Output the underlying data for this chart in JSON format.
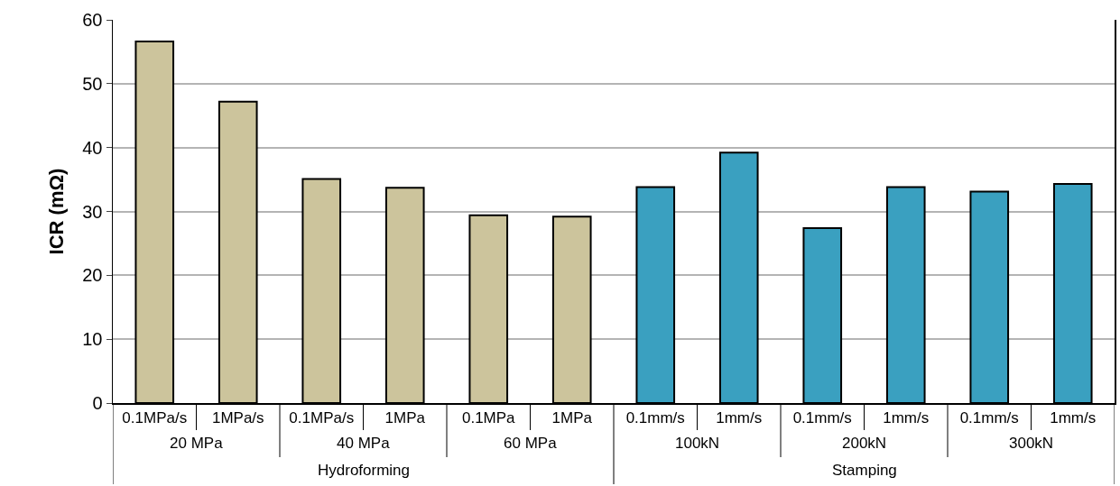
{
  "chart_data": {
    "type": "bar",
    "ylabel": "ICR (mΩ)",
    "categories": [
      "0.1MPa/s",
      "1MPa/s",
      "0.1MPa/s",
      "1MPa",
      "0.1MPa",
      "1MPa",
      "0.1mm/s",
      "1mm/s",
      "0.1mm/s",
      "1mm/s",
      "0.1mm/s",
      "1mm/s"
    ],
    "series": [
      {
        "color": "#ccc49c",
        "values": [
          56.6,
          47.2,
          35.1,
          33.7,
          29.4,
          29.2,
          null,
          null,
          null,
          null,
          null,
          null
        ]
      },
      {
        "color": "#3aa0c0",
        "values": [
          null,
          null,
          null,
          null,
          null,
          null,
          33.8,
          39.2,
          27.4,
          33.8,
          33.1,
          34.3
        ]
      }
    ],
    "annotations": [
      "20 MPa",
      "40 MPa",
      "60 MPa",
      "100kN",
      "200kN",
      "300kN",
      "Hydroforming",
      "Stamping"
    ],
    "ylim": [
      0,
      60
    ],
    "yticks": [
      0,
      10,
      20,
      30,
      40,
      50,
      60
    ],
    "grid": "y"
  }
}
